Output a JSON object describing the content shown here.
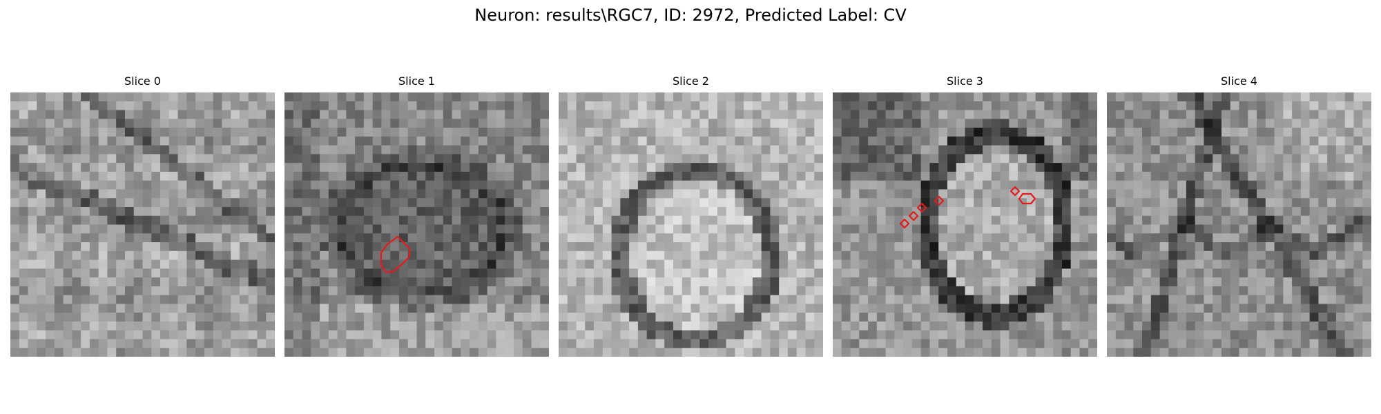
{
  "figure": {
    "title": "Neuron: results\\RGC7, ID: 2972, Predicted Label: CV"
  },
  "panels": [
    {
      "title": "Slice 0",
      "seed": 11,
      "pattern": "rough",
      "mean": 155,
      "highlight": "none"
    },
    {
      "title": "Slice 1",
      "seed": 23,
      "pattern": "dark_mid",
      "mean": 135,
      "highlight": "single_lobe"
    },
    {
      "title": "Slice 2",
      "seed": 37,
      "pattern": "bright_cell",
      "mean": 170,
      "highlight": "none"
    },
    {
      "title": "Slice 3",
      "seed": 53,
      "pattern": "cell_ring",
      "mean": 150,
      "highlight": "small_marks"
    },
    {
      "title": "Slice 4",
      "seed": 71,
      "pattern": "streaks",
      "mean": 145,
      "highlight": "none"
    }
  ],
  "colors": {
    "background": "#ffffff",
    "contour": "#e41a1c",
    "text": "#000000"
  }
}
